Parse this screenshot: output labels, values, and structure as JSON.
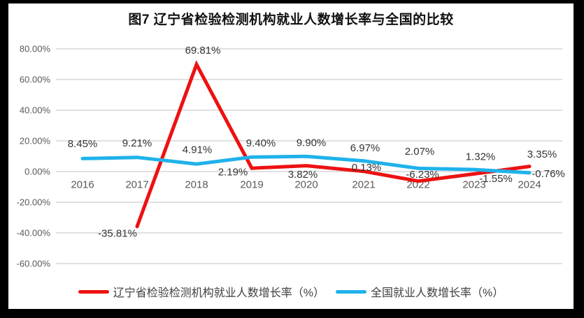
{
  "title": "图7 辽宁省检验检测机构就业人数增长率与全国的比较",
  "colors": {
    "frame_border": "#000000",
    "background": "#ffffff",
    "gridline": "#dcdcdc",
    "axis_text": "#595959",
    "data_label_text": "#333333",
    "liaoning_red": "#ed1111",
    "national_blue": "#1fb2ea"
  },
  "chart_data": {
    "type": "line",
    "categories": [
      "2016",
      "2017",
      "2018",
      "2019",
      "2020",
      "2021",
      "2022",
      "2023",
      "2024"
    ],
    "series": [
      {
        "name": "辽宁省检验检测机构就业人数增长率（%）",
        "color": "#ed1111",
        "values": [
          null,
          -35.81,
          69.81,
          2.19,
          3.82,
          0.13,
          -6.23,
          -1.55,
          3.35
        ],
        "labels": [
          "",
          "-35.81%",
          "69.81%",
          "2.19%",
          "3.82%",
          "0.13%",
          "-6.23%",
          "-1.55%",
          "3.35%"
        ]
      },
      {
        "name": "全国就业人数增长率（%）",
        "color": "#1fb2ea",
        "values": [
          8.45,
          9.21,
          4.91,
          9.4,
          9.9,
          6.97,
          2.07,
          1.32,
          -0.76
        ],
        "labels": [
          "8.45%",
          "9.21%",
          "4.91%",
          "9.40%",
          "9.90%",
          "6.97%",
          "2.07%",
          "1.32%",
          "-0.76%"
        ]
      }
    ],
    "y_axis": {
      "ticks": [
        "80.00%",
        "60.00%",
        "40.00%",
        "20.00%",
        "0.00%",
        "-20.00%",
        "-40.00%",
        "-60.00%"
      ],
      "tick_values": [
        80,
        60,
        40,
        20,
        0,
        -20,
        -40,
        -60
      ],
      "ylim": [
        -60,
        80
      ]
    },
    "grid": true,
    "legend_position": "bottom"
  }
}
